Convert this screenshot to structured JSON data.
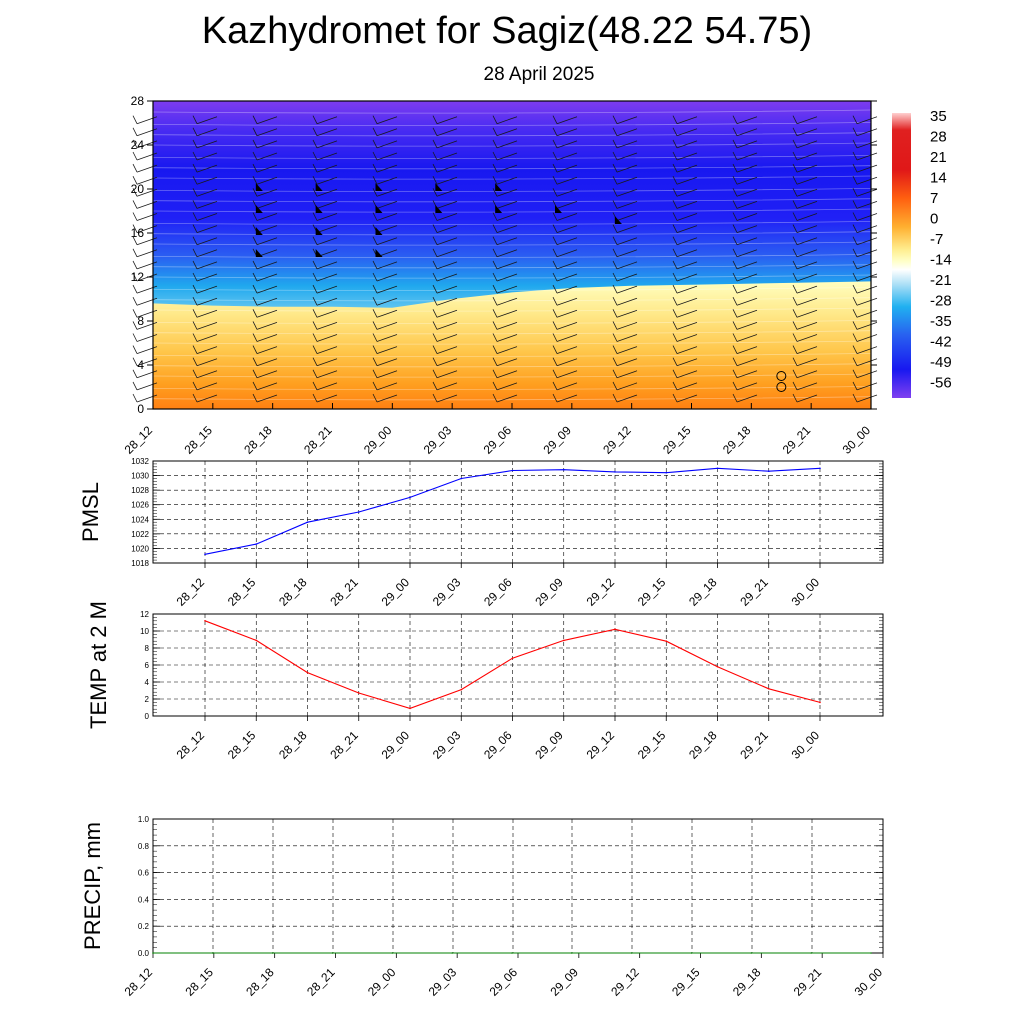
{
  "title": "Kazhydromet for Sagiz(48.22 54.75)",
  "subtitle": "28 April 2025",
  "chart_data": [
    {
      "type": "heatmap",
      "name": "cross-section",
      "x_ticks": [
        "28_12",
        "28_15",
        "28_18",
        "28_21",
        "29_00",
        "29_03",
        "29_06",
        "29_09",
        "29_12",
        "29_15",
        "29_18",
        "29_21",
        "30_00"
      ],
      "y_ticks": [
        0,
        4,
        8,
        12,
        16,
        20,
        24,
        28
      ],
      "ylim": [
        0,
        28
      ],
      "colorbar_ticks": [
        35,
        28,
        21,
        14,
        7,
        0,
        -7,
        -14,
        -21,
        -28,
        -35,
        -42,
        -49,
        -56
      ],
      "freezing_level": [
        9.6,
        9.4,
        9.3,
        9.3,
        9.2,
        10.0,
        10.6,
        11.0,
        11.2,
        11.3,
        11.4,
        11.5,
        11.6
      ],
      "pennant_barbs": [
        {
          "time": "28_15",
          "levels": [
            14,
            16,
            18,
            20
          ]
        },
        {
          "time": "28_18",
          "levels": [
            14,
            16,
            18,
            20
          ]
        },
        {
          "time": "28_21",
          "levels": [
            14,
            16,
            18,
            20
          ]
        },
        {
          "time": "29_00",
          "levels": [
            18,
            20
          ]
        },
        {
          "time": "29_03",
          "levels": [
            18,
            20
          ]
        },
        {
          "time": "29_06",
          "levels": [
            18
          ]
        },
        {
          "time": "29_09",
          "levels": [
            17
          ]
        }
      ],
      "calm_marks": [
        {
          "time": "29_18",
          "levels": [
            2,
            3
          ]
        }
      ]
    },
    {
      "type": "line",
      "ylabel": "PMSL",
      "x": [
        "28_12",
        "28_15",
        "28_18",
        "28_21",
        "29_00",
        "29_03",
        "29_06",
        "29_09",
        "29_12",
        "29_15",
        "29_18",
        "29_21",
        "30_00"
      ],
      "y_ticks": [
        1018,
        1020,
        1022,
        1024,
        1026,
        1028,
        1030,
        1032
      ],
      "ylim": [
        1018,
        1032
      ],
      "series": [
        {
          "values": [
            1019.2,
            1020.6,
            1023.6,
            1025.0,
            1027.0,
            1029.6,
            1030.7,
            1030.8,
            1030.5,
            1030.4,
            1031.0,
            1030.6,
            1031.0
          ]
        }
      ],
      "color": "#0000ff"
    },
    {
      "type": "line",
      "ylabel": "TEMP at 2 M",
      "x": [
        "28_12",
        "28_15",
        "28_18",
        "28_21",
        "29_00",
        "29_03",
        "29_06",
        "29_09",
        "29_12",
        "29_15",
        "29_18",
        "29_21",
        "30_00"
      ],
      "y_ticks": [
        0,
        2,
        4,
        6,
        8,
        10,
        12
      ],
      "ylim": [
        0,
        12
      ],
      "series": [
        {
          "values": [
            11.2,
            8.9,
            5.1,
            2.7,
            0.9,
            3.1,
            6.8,
            8.9,
            10.2,
            8.8,
            5.8,
            3.2,
            1.6
          ]
        }
      ],
      "color": "#ff0000"
    },
    {
      "type": "line",
      "ylabel": "PRECIP, mm",
      "x": [
        "28_12",
        "28_15",
        "28_18",
        "28_21",
        "29_00",
        "29_03",
        "29_06",
        "29_09",
        "29_12",
        "29_15",
        "29_18",
        "29_21",
        "30_00"
      ],
      "y_ticks": [
        "0.0",
        "0.2",
        "0.4",
        "0.6",
        "0.8",
        "1.0"
      ],
      "ylim": [
        0,
        1.0
      ],
      "series": [
        {
          "values": [
            0,
            0,
            0,
            0,
            0,
            0,
            0,
            0,
            0,
            0,
            0,
            0,
            0
          ]
        }
      ],
      "color": "#008000"
    }
  ]
}
